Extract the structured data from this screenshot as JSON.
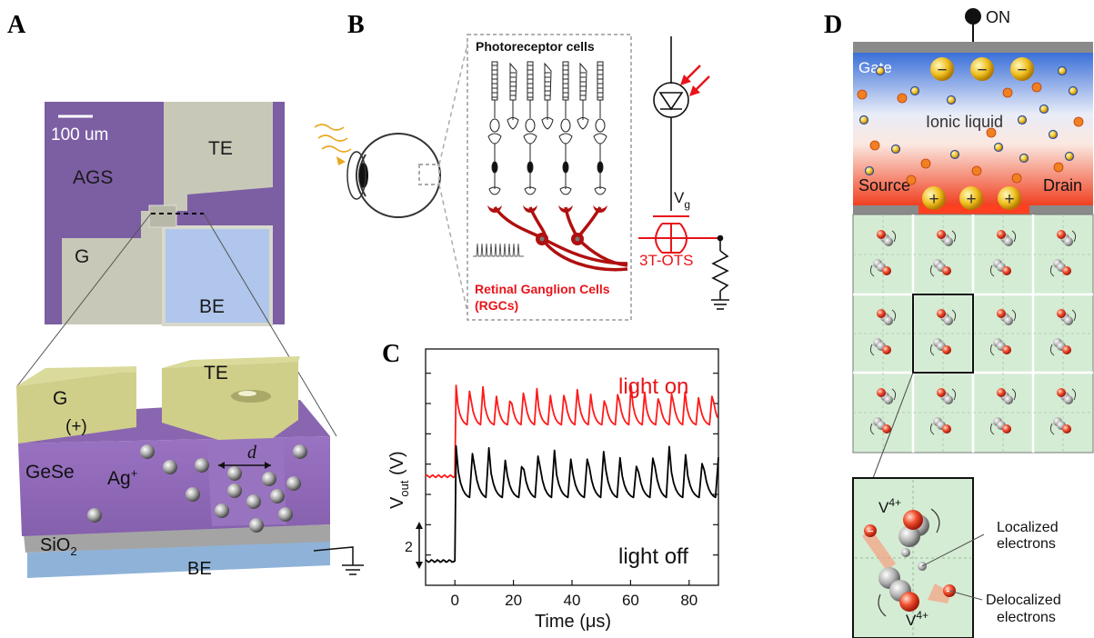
{
  "panels": {
    "a": {
      "label": "A",
      "micrograph": {
        "scale_bar": "100 um",
        "labels": [
          "AGS",
          "TE",
          "G",
          "BE"
        ]
      },
      "device": {
        "labels": {
          "g": "G",
          "te": "TE",
          "plus": "(+)",
          "gese": "GeSe",
          "ag": "Ag",
          "ag_sup": "+",
          "d": "d",
          "sio2": "SiO",
          "sio2_sub": "2",
          "be": "BE"
        }
      }
    },
    "b": {
      "label": "B",
      "photoreceptor_title": "Photoreceptor cells",
      "rgc_line1": "Retinal Ganglion Cells",
      "rgc_line2": "(RGCs)",
      "vg": "V",
      "vg_sub": "g",
      "device_name": "3T-OTS"
    },
    "c": {
      "label": "C",
      "chart_data": {
        "type": "line",
        "xlabel": "Time (μs)",
        "ylabel": "V",
        "ylabel_sub": "out",
        "ylabel_unit": " (V)",
        "xlim": [
          -10,
          90
        ],
        "xticks": [
          0,
          20,
          40,
          60,
          80
        ],
        "scale_bar_label": "2",
        "series": [
          {
            "name": "light on",
            "color": "#ff1a1a",
            "baseline": 3.6,
            "step_time": 0,
            "spike_high": 6.6,
            "spike_low": 5.3,
            "period_us": 4.6
          },
          {
            "name": "light off",
            "color": "#000000",
            "baseline": 0.8,
            "step_time": 0,
            "spike_high": 4.6,
            "spike_low": 2.9,
            "period_us": 5.6
          }
        ]
      }
    },
    "d": {
      "label": "D",
      "on_label": "ON",
      "gate": "Gate",
      "ionic": "Ionic liquid",
      "source": "Source",
      "drain": "Drain",
      "minus": "−",
      "plus": "+",
      "v4_a": "V",
      "v4_b": "V",
      "v4_sup": "4+",
      "localized_1": "Localized",
      "localized_2": "electrons",
      "delocalized_1": "Delocalized",
      "delocalized_2": "electrons"
    }
  },
  "colors": {
    "purple": "#7b5ca0",
    "olive": "#c9c98a",
    "blue_be": "#8fb3e0",
    "red": "#e8141a",
    "grid_green": "#d8efd8"
  }
}
